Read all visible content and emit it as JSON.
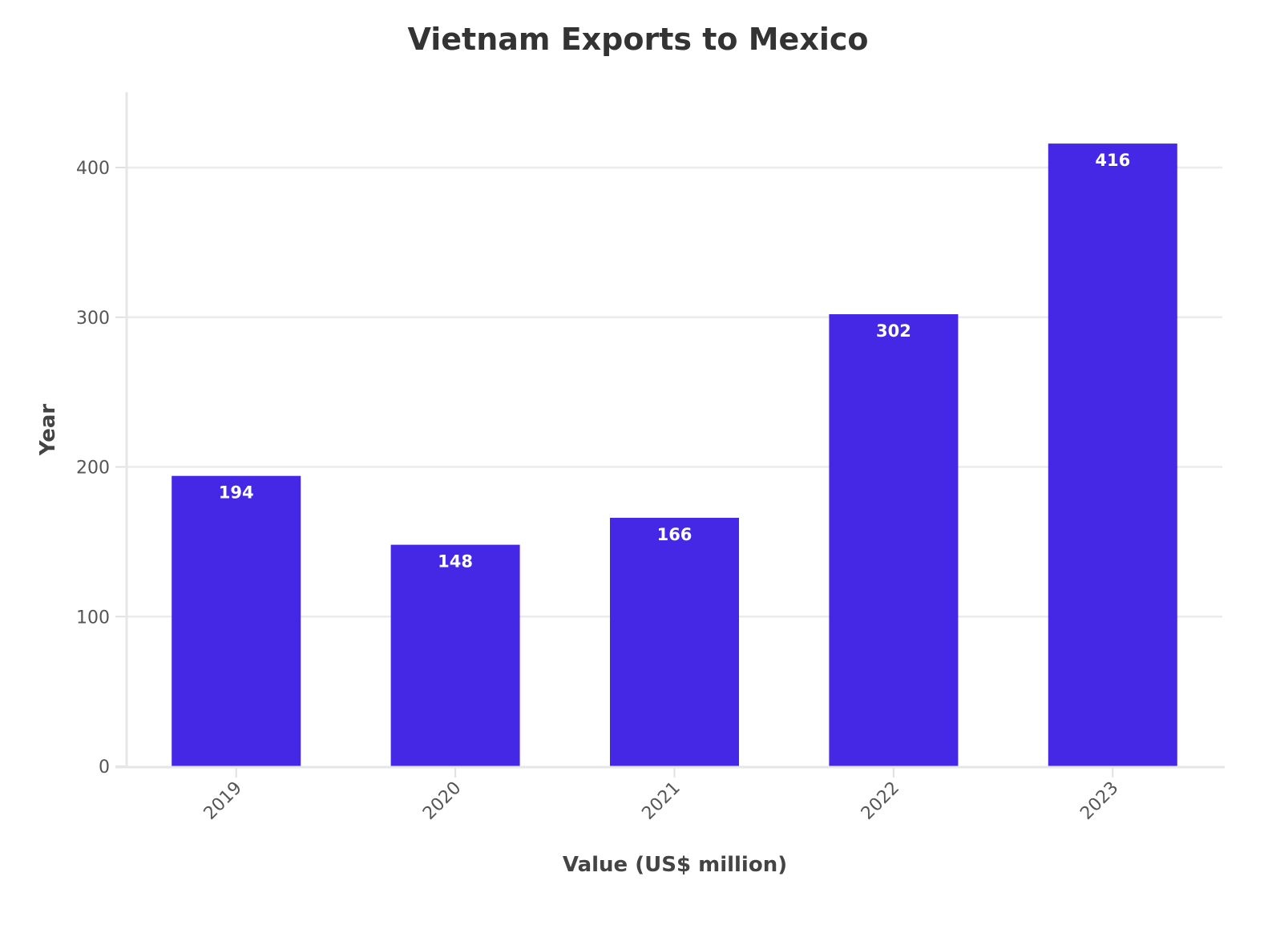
{
  "chart_data": {
    "type": "bar",
    "title": "Vietnam Exports to Mexico",
    "xlabel": "Value (US$ million)",
    "ylabel": "Year",
    "categories": [
      "2019",
      "2020",
      "2021",
      "2022",
      "2023"
    ],
    "values": [
      194,
      148,
      166,
      302,
      416
    ],
    "data_labels": [
      "194",
      "148",
      "166",
      "302",
      "416"
    ],
    "ylim": [
      0,
      450
    ],
    "yticks": [
      0,
      100,
      200,
      300,
      400
    ],
    "ytick_labels": [
      "0",
      "100",
      "200",
      "300",
      "400"
    ],
    "grid": true,
    "legend": "none",
    "bar_color": "#4527E6"
  }
}
